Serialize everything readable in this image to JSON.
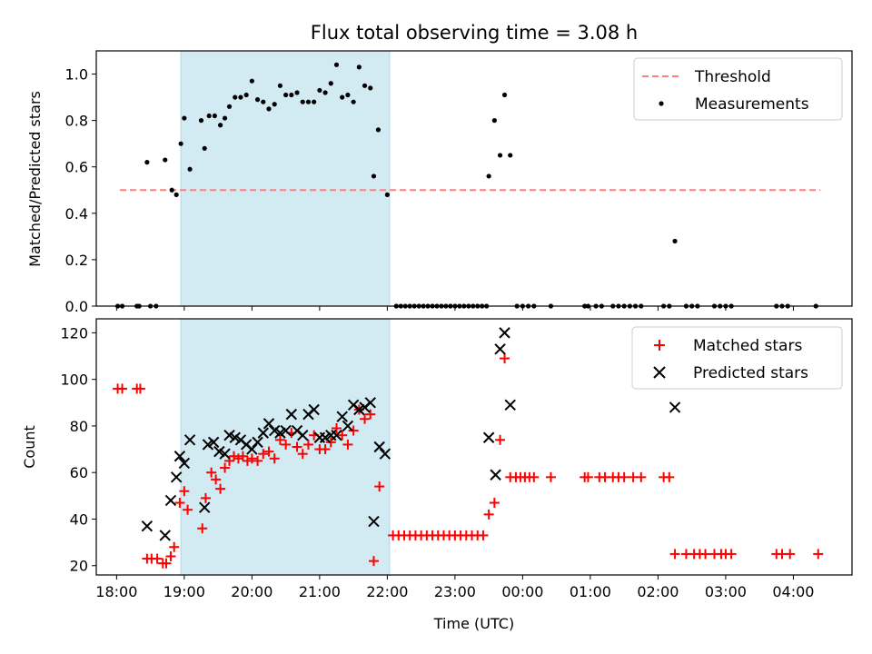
{
  "chart_data": [
    {
      "type": "scatter",
      "title": "Flux total observing time = 3.08 h",
      "xlabel": "",
      "ylabel": "Matched/Predicted stars",
      "xlim": [
        "17:42",
        "04:52"
      ],
      "ylim": [
        0,
        1.1
      ],
      "yticks": [
        "0.0",
        "0.2",
        "0.4",
        "0.6",
        "0.8",
        "1.0"
      ],
      "shaded_interval": [
        "18:57",
        "22:02"
      ],
      "shade_color": "#add8e6",
      "threshold": {
        "name": "Threshold",
        "value": 0.5,
        "x_start": "18:03",
        "x_end": "04:24",
        "color": "#ff7f7f"
      },
      "legend_position": "upper right",
      "series": [
        {
          "name": "Measurements",
          "color": "#000000",
          "points": [
            [
              "18:01",
              0
            ],
            [
              "18:05",
              0
            ],
            [
              "18:18",
              0
            ],
            [
              "18:20",
              0
            ],
            [
              "18:30",
              0
            ],
            [
              "18:35",
              0
            ],
            [
              "18:27",
              0.62
            ],
            [
              "18:43",
              0.63
            ],
            [
              "18:49",
              0.5
            ],
            [
              "18:53",
              0.48
            ],
            [
              "18:57",
              0.7
            ],
            [
              "19:00",
              0.81
            ],
            [
              "19:05",
              0.59
            ],
            [
              "19:15",
              0.8
            ],
            [
              "19:18",
              0.68
            ],
            [
              "19:22",
              0.82
            ],
            [
              "19:27",
              0.82
            ],
            [
              "19:32",
              0.78
            ],
            [
              "19:36",
              0.81
            ],
            [
              "19:40",
              0.86
            ],
            [
              "19:45",
              0.9
            ],
            [
              "19:50",
              0.9
            ],
            [
              "19:55",
              0.91
            ],
            [
              "20:00",
              0.97
            ],
            [
              "20:05",
              0.89
            ],
            [
              "20:10",
              0.88
            ],
            [
              "20:15",
              0.85
            ],
            [
              "20:20",
              0.87
            ],
            [
              "20:25",
              0.95
            ],
            [
              "20:30",
              0.91
            ],
            [
              "20:35",
              0.91
            ],
            [
              "20:40",
              0.92
            ],
            [
              "20:45",
              0.88
            ],
            [
              "20:50",
              0.88
            ],
            [
              "20:55",
              0.88
            ],
            [
              "21:00",
              0.93
            ],
            [
              "21:05",
              0.92
            ],
            [
              "21:10",
              0.96
            ],
            [
              "21:15",
              1.04
            ],
            [
              "21:20",
              0.9
            ],
            [
              "21:25",
              0.91
            ],
            [
              "21:30",
              0.88
            ],
            [
              "21:35",
              1.03
            ],
            [
              "21:40",
              0.95
            ],
            [
              "21:45",
              0.94
            ],
            [
              "21:48",
              0.56
            ],
            [
              "21:52",
              0.76
            ],
            [
              "22:00",
              0.48
            ],
            [
              "22:08",
              0
            ],
            [
              "22:12",
              0
            ],
            [
              "22:16",
              0
            ],
            [
              "22:20",
              0
            ],
            [
              "22:24",
              0
            ],
            [
              "22:28",
              0
            ],
            [
              "22:32",
              0
            ],
            [
              "22:36",
              0
            ],
            [
              "22:40",
              0
            ],
            [
              "22:44",
              0
            ],
            [
              "22:48",
              0
            ],
            [
              "22:52",
              0
            ],
            [
              "22:56",
              0
            ],
            [
              "23:00",
              0
            ],
            [
              "23:04",
              0
            ],
            [
              "23:08",
              0
            ],
            [
              "23:12",
              0
            ],
            [
              "23:16",
              0
            ],
            [
              "23:20",
              0
            ],
            [
              "23:24",
              0
            ],
            [
              "23:28",
              0
            ],
            [
              "23:30",
              0.56
            ],
            [
              "23:35",
              0.8
            ],
            [
              "23:40",
              0.65
            ],
            [
              "23:44",
              0.91
            ],
            [
              "23:49",
              0.65
            ],
            [
              "23:55",
              0
            ],
            [
              "00:00",
              0
            ],
            [
              "00:05",
              0
            ],
            [
              "00:10",
              0
            ],
            [
              "00:25",
              0
            ],
            [
              "00:55",
              0
            ],
            [
              "00:58",
              0
            ],
            [
              "01:05",
              0
            ],
            [
              "01:10",
              0
            ],
            [
              "01:20",
              0
            ],
            [
              "01:25",
              0
            ],
            [
              "01:30",
              0
            ],
            [
              "01:35",
              0
            ],
            [
              "01:40",
              0
            ],
            [
              "01:45",
              0
            ],
            [
              "02:05",
              0
            ],
            [
              "02:10",
              0
            ],
            [
              "02:15",
              0.28
            ],
            [
              "02:25",
              0
            ],
            [
              "02:30",
              0
            ],
            [
              "02:35",
              0
            ],
            [
              "02:50",
              0
            ],
            [
              "02:55",
              0
            ],
            [
              "03:00",
              0
            ],
            [
              "03:05",
              0
            ],
            [
              "03:45",
              0
            ],
            [
              "03:50",
              0
            ],
            [
              "03:55",
              0
            ],
            [
              "04:20",
              0
            ]
          ]
        }
      ]
    },
    {
      "type": "scatter",
      "title": "",
      "xlabel": "Time (UTC)",
      "ylabel": "Count",
      "xlim": [
        "17:42",
        "04:52"
      ],
      "ylim": [
        16,
        126
      ],
      "yticks": [
        "20",
        "40",
        "60",
        "80",
        "100",
        "120"
      ],
      "xticks": [
        "18:00",
        "19:00",
        "20:00",
        "21:00",
        "22:00",
        "23:00",
        "00:00",
        "01:00",
        "02:00",
        "03:00",
        "04:00"
      ],
      "shaded_interval": [
        "18:57",
        "22:02"
      ],
      "shade_color": "#add8e6",
      "legend_position": "upper right",
      "series": [
        {
          "name": "Matched stars",
          "color": "#ff0000",
          "points": [
            [
              "18:01",
              96
            ],
            [
              "18:05",
              96
            ],
            [
              "18:18",
              96
            ],
            [
              "18:21",
              96
            ],
            [
              "18:27",
              23
            ],
            [
              "18:31",
              23
            ],
            [
              "18:36",
              23
            ],
            [
              "18:41",
              21
            ],
            [
              "18:44",
              21
            ],
            [
              "18:48",
              24
            ],
            [
              "18:51",
              28
            ],
            [
              "18:56",
              47
            ],
            [
              "19:00",
              52
            ],
            [
              "19:03",
              44
            ],
            [
              "19:16",
              36
            ],
            [
              "19:19",
              49
            ],
            [
              "19:24",
              60
            ],
            [
              "19:28",
              57
            ],
            [
              "19:32",
              53
            ],
            [
              "19:36",
              62
            ],
            [
              "19:40",
              65
            ],
            [
              "19:44",
              67
            ],
            [
              "19:48",
              66
            ],
            [
              "19:52",
              67
            ],
            [
              "19:56",
              65
            ],
            [
              "20:00",
              66
            ],
            [
              "20:05",
              65
            ],
            [
              "20:10",
              68
            ],
            [
              "20:15",
              69
            ],
            [
              "20:20",
              66
            ],
            [
              "20:25",
              74
            ],
            [
              "20:30",
              72
            ],
            [
              "20:35",
              77
            ],
            [
              "20:40",
              71
            ],
            [
              "20:45",
              68
            ],
            [
              "20:50",
              72
            ],
            [
              "20:55",
              76
            ],
            [
              "21:00",
              70
            ],
            [
              "21:05",
              70
            ],
            [
              "21:10",
              73
            ],
            [
              "21:15",
              79
            ],
            [
              "21:20",
              76
            ],
            [
              "21:25",
              72
            ],
            [
              "21:30",
              78
            ],
            [
              "21:35",
              87
            ],
            [
              "21:40",
              83
            ],
            [
              "21:45",
              85
            ],
            [
              "21:48",
              22
            ],
            [
              "21:53",
              54
            ],
            [
              "22:05",
              33
            ],
            [
              "22:10",
              33
            ],
            [
              "22:15",
              33
            ],
            [
              "22:20",
              33
            ],
            [
              "22:25",
              33
            ],
            [
              "22:30",
              33
            ],
            [
              "22:35",
              33
            ],
            [
              "22:40",
              33
            ],
            [
              "22:45",
              33
            ],
            [
              "22:50",
              33
            ],
            [
              "22:55",
              33
            ],
            [
              "23:00",
              33
            ],
            [
              "23:05",
              33
            ],
            [
              "23:10",
              33
            ],
            [
              "23:15",
              33
            ],
            [
              "23:20",
              33
            ],
            [
              "23:25",
              33
            ],
            [
              "23:30",
              42
            ],
            [
              "23:35",
              47
            ],
            [
              "23:40",
              74
            ],
            [
              "23:44",
              109
            ],
            [
              "23:49",
              58
            ],
            [
              "23:54",
              58
            ],
            [
              "23:58",
              58
            ],
            [
              "00:02",
              58
            ],
            [
              "00:06",
              58
            ],
            [
              "00:10",
              58
            ],
            [
              "00:25",
              58
            ],
            [
              "00:55",
              58
            ],
            [
              "00:58",
              58
            ],
            [
              "01:08",
              58
            ],
            [
              "01:13",
              58
            ],
            [
              "01:20",
              58
            ],
            [
              "01:25",
              58
            ],
            [
              "01:30",
              58
            ],
            [
              "01:38",
              58
            ],
            [
              "01:45",
              58
            ],
            [
              "02:05",
              58
            ],
            [
              "02:10",
              58
            ],
            [
              "02:15",
              25
            ],
            [
              "02:25",
              25
            ],
            [
              "02:32",
              25
            ],
            [
              "02:37",
              25
            ],
            [
              "02:42",
              25
            ],
            [
              "02:50",
              25
            ],
            [
              "02:56",
              25
            ],
            [
              "03:00",
              25
            ],
            [
              "03:05",
              25
            ],
            [
              "03:45",
              25
            ],
            [
              "03:50",
              25
            ],
            [
              "03:57",
              25
            ],
            [
              "04:22",
              25
            ]
          ]
        },
        {
          "name": "Predicted stars",
          "color": "#000000",
          "points": [
            [
              "18:27",
              37
            ],
            [
              "18:43",
              33
            ],
            [
              "18:48",
              48
            ],
            [
              "18:53",
              58
            ],
            [
              "18:56",
              67
            ],
            [
              "19:00",
              64
            ],
            [
              "19:05",
              74
            ],
            [
              "19:18",
              45
            ],
            [
              "19:21",
              72
            ],
            [
              "19:26",
              73
            ],
            [
              "19:31",
              69
            ],
            [
              "19:36",
              68
            ],
            [
              "19:40",
              76
            ],
            [
              "19:45",
              75
            ],
            [
              "19:50",
              74
            ],
            [
              "19:55",
              72
            ],
            [
              "20:00",
              70
            ],
            [
              "20:05",
              73
            ],
            [
              "20:10",
              77
            ],
            [
              "20:15",
              81
            ],
            [
              "20:20",
              78
            ],
            [
              "20:25",
              77
            ],
            [
              "20:30",
              78
            ],
            [
              "20:35",
              85
            ],
            [
              "20:40",
              78
            ],
            [
              "20:45",
              76
            ],
            [
              "20:50",
              85
            ],
            [
              "20:55",
              87
            ],
            [
              "21:00",
              75
            ],
            [
              "21:05",
              75
            ],
            [
              "21:10",
              76
            ],
            [
              "21:15",
              76
            ],
            [
              "21:20",
              84
            ],
            [
              "21:25",
              80
            ],
            [
              "21:30",
              89
            ],
            [
              "21:35",
              87
            ],
            [
              "21:40",
              88
            ],
            [
              "21:45",
              90
            ],
            [
              "21:48",
              39
            ],
            [
              "21:53",
              71
            ],
            [
              "21:58",
              68
            ],
            [
              "23:30",
              75
            ],
            [
              "23:36",
              59
            ],
            [
              "23:40",
              113
            ],
            [
              "23:44",
              120
            ],
            [
              "23:49",
              89
            ],
            [
              "02:15",
              88
            ]
          ]
        }
      ]
    }
  ]
}
